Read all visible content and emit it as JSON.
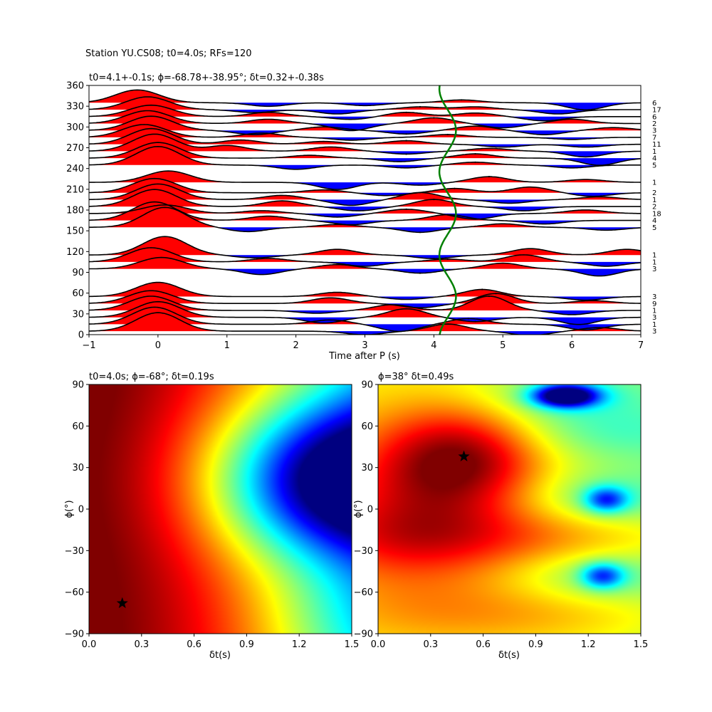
{
  "figure": {
    "suptitle": "Station YU.CS08; t0=4.0s; RFs=120"
  },
  "chart_data": [
    {
      "type": "line",
      "panel": "receiver-function-gather",
      "title": "t0=4.1+-0.1s; ϕ=-68.78+-38.95°; δt=0.32+-0.38s",
      "xlabel": "Time after P (s)",
      "ylabel": "",
      "xlim": [
        -1,
        7
      ],
      "ylim": [
        0,
        360
      ],
      "xticks": [
        -1,
        0,
        1,
        2,
        3,
        4,
        5,
        6,
        7
      ],
      "yticks": [
        0,
        30,
        60,
        90,
        120,
        150,
        180,
        210,
        240,
        270,
        300,
        330,
        360
      ],
      "fill_colors": {
        "positive": "#ff0000",
        "negative": "#0000ff"
      },
      "moveout_curve": {
        "color": "#008000",
        "t0": 4.2,
        "amplitude": 0.12,
        "cycles_per_360": 3,
        "phase_deg": -75
      },
      "traces": [
        {
          "baz": 5,
          "count": "3",
          "pulse_time": 0.0,
          "pulse_amp": 26,
          "peaks": [
            [
              3.0,
              -5
            ],
            [
              4.2,
              10
            ],
            [
              5.4,
              -6
            ],
            [
              6.4,
              5
            ]
          ]
        },
        {
          "baz": 15,
          "count": "1",
          "pulse_time": -0.05,
          "pulse_amp": 24,
          "peaks": [
            [
              2.5,
              6
            ],
            [
              3.5,
              -10
            ],
            [
              4.5,
              8
            ],
            [
              6.2,
              -8
            ]
          ]
        },
        {
          "baz": 25,
          "count": "3",
          "pulse_time": 0.0,
          "pulse_amp": 22,
          "peaks": [
            [
              2.4,
              -8
            ],
            [
              3.6,
              12
            ],
            [
              4.6,
              -6
            ],
            [
              6.1,
              -10
            ]
          ]
        },
        {
          "baz": 35,
          "count": "1",
          "pulse_time": -0.1,
          "pulse_amp": 20,
          "peaks": [
            [
              2.3,
              -4
            ],
            [
              3.4,
              8
            ],
            [
              4.8,
              20
            ],
            [
              6.0,
              -6
            ]
          ]
        },
        {
          "baz": 45,
          "count": "9",
          "pulse_time": -0.1,
          "pulse_amp": 18,
          "peaks": [
            [
              2.5,
              8
            ],
            [
              3.8,
              -6
            ],
            [
              4.9,
              14
            ],
            [
              6.3,
              4
            ]
          ]
        },
        {
          "baz": 55,
          "count": "3",
          "pulse_time": 0.0,
          "pulse_amp": 20,
          "peaks": [
            [
              2.6,
              6
            ],
            [
              3.6,
              -4
            ],
            [
              4.7,
              10
            ],
            [
              6.2,
              -5
            ]
          ]
        },
        {
          "baz": 95,
          "count": "3",
          "pulse_time": 0.05,
          "pulse_amp": 16,
          "peaks": [
            [
              1.5,
              -8
            ],
            [
              2.6,
              6
            ],
            [
              3.8,
              -6
            ],
            [
              5.0,
              8
            ],
            [
              6.4,
              -10
            ]
          ]
        },
        {
          "baz": 105,
          "count": "1",
          "pulse_time": -0.1,
          "pulse_amp": 20,
          "peaks": [
            [
              1.6,
              5
            ],
            [
              3.0,
              -6
            ],
            [
              4.2,
              4
            ],
            [
              5.3,
              10
            ],
            [
              6.5,
              -6
            ]
          ]
        },
        {
          "baz": 115,
          "count": "1",
          "pulse_time": 0.1,
          "pulse_amp": 26,
          "peaks": [
            [
              1.4,
              -4
            ],
            [
              2.6,
              8
            ],
            [
              4.0,
              -5
            ],
            [
              5.4,
              9
            ],
            [
              6.8,
              8
            ]
          ]
        },
        {
          "baz": 155,
          "count": "5",
          "pulse_time": 0.1,
          "pulse_amp": 28,
          "peaks": [
            [
              1.3,
              -6
            ],
            [
              2.6,
              4
            ],
            [
              3.8,
              -7
            ],
            [
              5.0,
              5
            ],
            [
              6.5,
              -4
            ]
          ]
        },
        {
          "baz": 165,
          "count": "4",
          "pulse_time": -0.05,
          "pulse_amp": 26,
          "peaks": [
            [
              1.6,
              6
            ],
            [
              2.8,
              -6
            ],
            [
              4.2,
              8
            ],
            [
              5.6,
              -5
            ]
          ]
        },
        {
          "baz": 175,
          "count": "18",
          "pulse_time": 0.1,
          "pulse_amp": 12,
          "peaks": [
            [
              1.5,
              4
            ],
            [
              2.6,
              -5
            ],
            [
              3.6,
              6
            ],
            [
              4.6,
              -8
            ],
            [
              6.2,
              5
            ]
          ]
        },
        {
          "baz": 185,
          "count": "2",
          "pulse_time": -0.05,
          "pulse_amp": 24,
          "peaks": [
            [
              1.8,
              8
            ],
            [
              2.9,
              -6
            ],
            [
              4.0,
              10
            ],
            [
              5.3,
              -6
            ]
          ]
        },
        {
          "baz": 195,
          "count": "1",
          "pulse_time": 0.0,
          "pulse_amp": 22,
          "peaks": [
            [
              1.8,
              6
            ],
            [
              2.8,
              -8
            ],
            [
              3.8,
              10
            ],
            [
              5.1,
              -5
            ],
            [
              6.4,
              4
            ]
          ]
        },
        {
          "baz": 205,
          "count": "2",
          "pulse_time": -0.05,
          "pulse_amp": 20,
          "peaks": [
            [
              2.4,
              4
            ],
            [
              3.3,
              -4
            ],
            [
              4.3,
              6
            ],
            [
              5.4,
              8
            ],
            [
              6.3,
              -5
            ]
          ]
        },
        {
          "baz": 220,
          "count": "1",
          "pulse_time": 0.15,
          "pulse_amp": 16,
          "peaks": [
            [
              2.6,
              -10
            ],
            [
              3.8,
              -4
            ],
            [
              4.8,
              8
            ],
            [
              6.2,
              4
            ]
          ]
        },
        {
          "baz": 245,
          "count": "5",
          "pulse_time": 0.0,
          "pulse_amp": 26,
          "peaks": [
            [
              2.0,
              -6
            ],
            [
              3.6,
              -4
            ],
            [
              4.6,
              4
            ],
            [
              6.0,
              -4
            ]
          ]
        },
        {
          "baz": 255,
          "count": "4",
          "pulse_time": 0.0,
          "pulse_amp": 22,
          "peaks": [
            [
              2.2,
              4
            ],
            [
              3.5,
              -5
            ],
            [
              4.6,
              6
            ],
            [
              6.4,
              -10
            ]
          ]
        },
        {
          "baz": 265,
          "count": "1",
          "pulse_time": -0.05,
          "pulse_amp": 24,
          "peaks": [
            [
              1.0,
              8
            ],
            [
              2.5,
              6
            ],
            [
              3.6,
              -4
            ],
            [
              4.8,
              4
            ],
            [
              6.2,
              -8
            ]
          ]
        },
        {
          "baz": 275,
          "count": "11",
          "pulse_time": -0.1,
          "pulse_amp": 22,
          "peaks": [
            [
              1.2,
              6
            ],
            [
              2.4,
              4
            ],
            [
              3.6,
              5
            ],
            [
              5.0,
              -4
            ],
            [
              6.2,
              -4
            ]
          ]
        },
        {
          "baz": 285,
          "count": "7",
          "pulse_time": -0.2,
          "pulse_amp": 18,
          "peaks": [
            [
              1.5,
              6
            ],
            [
              2.8,
              -4
            ],
            [
              4.2,
              4
            ],
            [
              6.0,
              -3
            ]
          ]
        },
        {
          "baz": 295,
          "count": "3",
          "pulse_time": -0.1,
          "pulse_amp": 20,
          "peaks": [
            [
              1.4,
              -6
            ],
            [
              2.4,
              5
            ],
            [
              3.6,
              -5
            ],
            [
              4.6,
              6
            ],
            [
              5.6,
              -6
            ],
            [
              6.6,
              4
            ]
          ]
        },
        {
          "baz": 305,
          "count": "2",
          "pulse_time": -0.15,
          "pulse_amp": 18,
          "peaks": [
            [
              1.6,
              6
            ],
            [
              2.8,
              -10
            ],
            [
              4.0,
              8
            ],
            [
              5.0,
              -6
            ],
            [
              6.0,
              6
            ]
          ]
        },
        {
          "baz": 315,
          "count": "6",
          "pulse_time": -0.1,
          "pulse_amp": 16,
          "peaks": [
            [
              1.6,
              6
            ],
            [
              2.8,
              -4
            ],
            [
              3.6,
              6
            ],
            [
              4.6,
              5
            ],
            [
              5.6,
              -6
            ]
          ]
        },
        {
          "baz": 325,
          "count": "17",
          "pulse_time": -0.15,
          "pulse_amp": 18,
          "peaks": [
            [
              1.4,
              -4
            ],
            [
              2.6,
              -6
            ],
            [
              3.8,
              4
            ],
            [
              4.6,
              4
            ],
            [
              5.8,
              -6
            ]
          ]
        },
        {
          "baz": 335,
          "count": "6",
          "pulse_time": -0.3,
          "pulse_amp": 18,
          "peaks": [
            [
              1.6,
              -5
            ],
            [
              3.0,
              -4
            ],
            [
              4.4,
              4
            ],
            [
              6.2,
              -10
            ]
          ]
        }
      ]
    },
    {
      "type": "heatmap",
      "panel": "grid-search-left",
      "title": "t0=4.0s; ϕ=-68°; δt=0.19s",
      "xlabel": "δt(s)",
      "ylabel": "ϕ(°)",
      "xlim": [
        0,
        1.5
      ],
      "ylim": [
        -90,
        90
      ],
      "xticks": [
        0.0,
        0.3,
        0.6,
        0.9,
        1.2,
        1.5
      ],
      "yticks": [
        -90,
        -60,
        -30,
        0,
        30,
        60,
        90
      ],
      "colormap": "jet",
      "best_point": {
        "dt": 0.19,
        "phi": -68
      },
      "minimum": {
        "dt": 1.5,
        "phi": 21
      }
    },
    {
      "type": "heatmap",
      "panel": "grid-search-right",
      "title": "ϕ=38° δt=0.49s",
      "xlabel": "δt(s)",
      "ylabel": "ϕ(°)",
      "xlim": [
        0,
        1.5
      ],
      "ylim": [
        -90,
        90
      ],
      "xticks": [
        0.0,
        0.3,
        0.6,
        0.9,
        1.2,
        1.5
      ],
      "yticks": [
        -90,
        -60,
        -30,
        0,
        30,
        60,
        90
      ],
      "colormap": "jet",
      "best_point": {
        "dt": 0.49,
        "phi": 38
      },
      "minima": [
        {
          "dt": 1.07,
          "phi": 82
        },
        {
          "dt": 1.3,
          "phi": 7
        },
        {
          "dt": 1.28,
          "phi": -48
        }
      ]
    }
  ]
}
